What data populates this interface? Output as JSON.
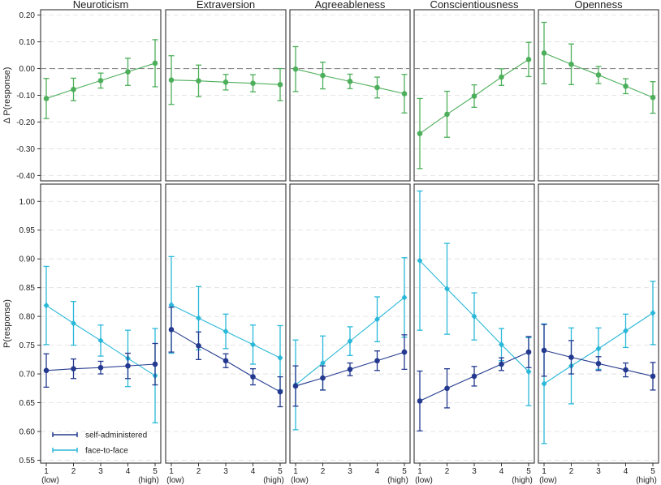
{
  "chart_data": {
    "type": "line",
    "layout": "faceted 2 rows x 5 columns",
    "colors": {
      "delta": "#4daf5b",
      "self_administered": "#23398f",
      "face_to_face": "#2ab8d9",
      "grid": "#dddddd",
      "zero_line": "#888888",
      "panel_border": "#333333"
    },
    "facets": [
      "Neuroticism",
      "Extraversion",
      "Agreeableness",
      "Conscientiousness",
      "Openness"
    ],
    "x_categories": [
      "1",
      "2",
      "3",
      "4",
      "5"
    ],
    "x_sublabels": {
      "1": "(low)",
      "5": "(high)"
    },
    "top": {
      "ylabel": "Δ P(response)",
      "ylim": [
        -0.42,
        0.22
      ],
      "yticks": [
        "0.20",
        "0.10",
        "0.00",
        "-0.10",
        "-0.20",
        "-0.30",
        "-0.40"
      ],
      "ytick_values": [
        0.2,
        0.1,
        0.0,
        -0.1,
        -0.2,
        -0.3,
        -0.4
      ],
      "reference_line": 0,
      "panels": [
        {
          "mean": [
            -0.112,
            -0.078,
            -0.045,
            -0.012,
            0.02
          ],
          "lo": [
            -0.187,
            -0.12,
            -0.073,
            -0.063,
            -0.068
          ],
          "hi": [
            -0.037,
            -0.036,
            -0.017,
            0.039,
            0.108
          ]
        },
        {
          "mean": [
            -0.043,
            -0.046,
            -0.051,
            -0.055,
            -0.06
          ],
          "lo": [
            -0.134,
            -0.105,
            -0.08,
            -0.087,
            -0.12
          ],
          "hi": [
            0.048,
            0.013,
            -0.022,
            -0.023,
            0.0
          ]
        },
        {
          "mean": [
            -0.002,
            -0.026,
            -0.048,
            -0.071,
            -0.094
          ],
          "lo": [
            -0.086,
            -0.076,
            -0.075,
            -0.11,
            -0.166
          ],
          "hi": [
            0.082,
            0.024,
            -0.021,
            -0.032,
            -0.022
          ]
        },
        {
          "mean": [
            -0.243,
            -0.171,
            -0.103,
            -0.032,
            0.034
          ],
          "lo": [
            -0.374,
            -0.257,
            -0.145,
            -0.063,
            -0.03
          ],
          "hi": [
            -0.112,
            -0.085,
            -0.061,
            -0.001,
            0.098
          ]
        },
        {
          "mean": [
            0.058,
            0.016,
            -0.024,
            -0.066,
            -0.108
          ],
          "lo": [
            -0.057,
            -0.06,
            -0.056,
            -0.094,
            -0.167
          ],
          "hi": [
            0.173,
            0.092,
            0.008,
            -0.038,
            -0.049
          ]
        }
      ]
    },
    "bottom": {
      "ylabel": "P(response)",
      "ylim": [
        0.545,
        1.03
      ],
      "yticks": [
        "1.00",
        "0.95",
        "0.90",
        "0.85",
        "0.80",
        "0.75",
        "0.70",
        "0.65",
        "0.60",
        "0.55"
      ],
      "ytick_values": [
        1.0,
        0.95,
        0.9,
        0.85,
        0.8,
        0.75,
        0.7,
        0.65,
        0.6,
        0.55
      ],
      "legend_position": "bottom-left",
      "series_names": [
        "self-administered",
        "face-to-face"
      ],
      "panels": [
        {
          "self_administered": {
            "mean": [
              0.706,
              0.709,
              0.711,
              0.714,
              0.717
            ],
            "lo": [
              0.677,
              0.692,
              0.7,
              0.692,
              0.681
            ],
            "hi": [
              0.735,
              0.726,
              0.722,
              0.736,
              0.753
            ]
          },
          "face_to_face": {
            "mean": [
              0.819,
              0.788,
              0.758,
              0.727,
              0.697
            ],
            "lo": [
              0.751,
              0.75,
              0.731,
              0.678,
              0.615
            ],
            "hi": [
              0.887,
              0.826,
              0.785,
              0.776,
              0.779
            ]
          }
        },
        {
          "self_administered": {
            "mean": [
              0.777,
              0.749,
              0.723,
              0.695,
              0.669
            ],
            "lo": [
              0.738,
              0.725,
              0.711,
              0.681,
              0.643
            ],
            "hi": [
              0.816,
              0.773,
              0.735,
              0.709,
              0.695
            ]
          },
          "face_to_face": {
            "mean": [
              0.82,
              0.797,
              0.774,
              0.751,
              0.728
            ],
            "lo": [
              0.736,
              0.742,
              0.744,
              0.717,
              0.672
            ],
            "hi": [
              0.904,
              0.852,
              0.804,
              0.785,
              0.784
            ]
          }
        },
        {
          "self_administered": {
            "mean": [
              0.679,
              0.693,
              0.708,
              0.723,
              0.738
            ],
            "lo": [
              0.644,
              0.672,
              0.697,
              0.706,
              0.708
            ],
            "hi": [
              0.714,
              0.714,
              0.719,
              0.74,
              0.768
            ]
          },
          "face_to_face": {
            "mean": [
              0.681,
              0.719,
              0.757,
              0.795,
              0.833
            ],
            "lo": [
              0.603,
              0.672,
              0.732,
              0.756,
              0.764
            ],
            "hi": [
              0.759,
              0.766,
              0.782,
              0.834,
              0.902
            ]
          }
        },
        {
          "self_administered": {
            "mean": [
              0.653,
              0.675,
              0.696,
              0.717,
              0.738
            ],
            "lo": [
              0.601,
              0.641,
              0.679,
              0.706,
              0.711
            ],
            "hi": [
              0.705,
              0.709,
              0.713,
              0.728,
              0.765
            ]
          },
          "face_to_face": {
            "mean": [
              0.897,
              0.848,
              0.8,
              0.751,
              0.704
            ],
            "lo": [
              0.776,
              0.769,
              0.759,
              0.723,
              0.645
            ],
            "hi": [
              1.018,
              0.927,
              0.841,
              0.779,
              0.763
            ]
          }
        },
        {
          "self_administered": {
            "mean": [
              0.741,
              0.729,
              0.718,
              0.707,
              0.696
            ],
            "lo": [
              0.696,
              0.7,
              0.706,
              0.695,
              0.672
            ],
            "hi": [
              0.786,
              0.758,
              0.73,
              0.719,
              0.72
            ]
          },
          "face_to_face": {
            "mean": [
              0.683,
              0.714,
              0.744,
              0.775,
              0.806
            ],
            "lo": [
              0.579,
              0.648,
              0.708,
              0.746,
              0.751
            ],
            "hi": [
              0.787,
              0.78,
              0.78,
              0.804,
              0.861
            ]
          }
        }
      ]
    }
  }
}
